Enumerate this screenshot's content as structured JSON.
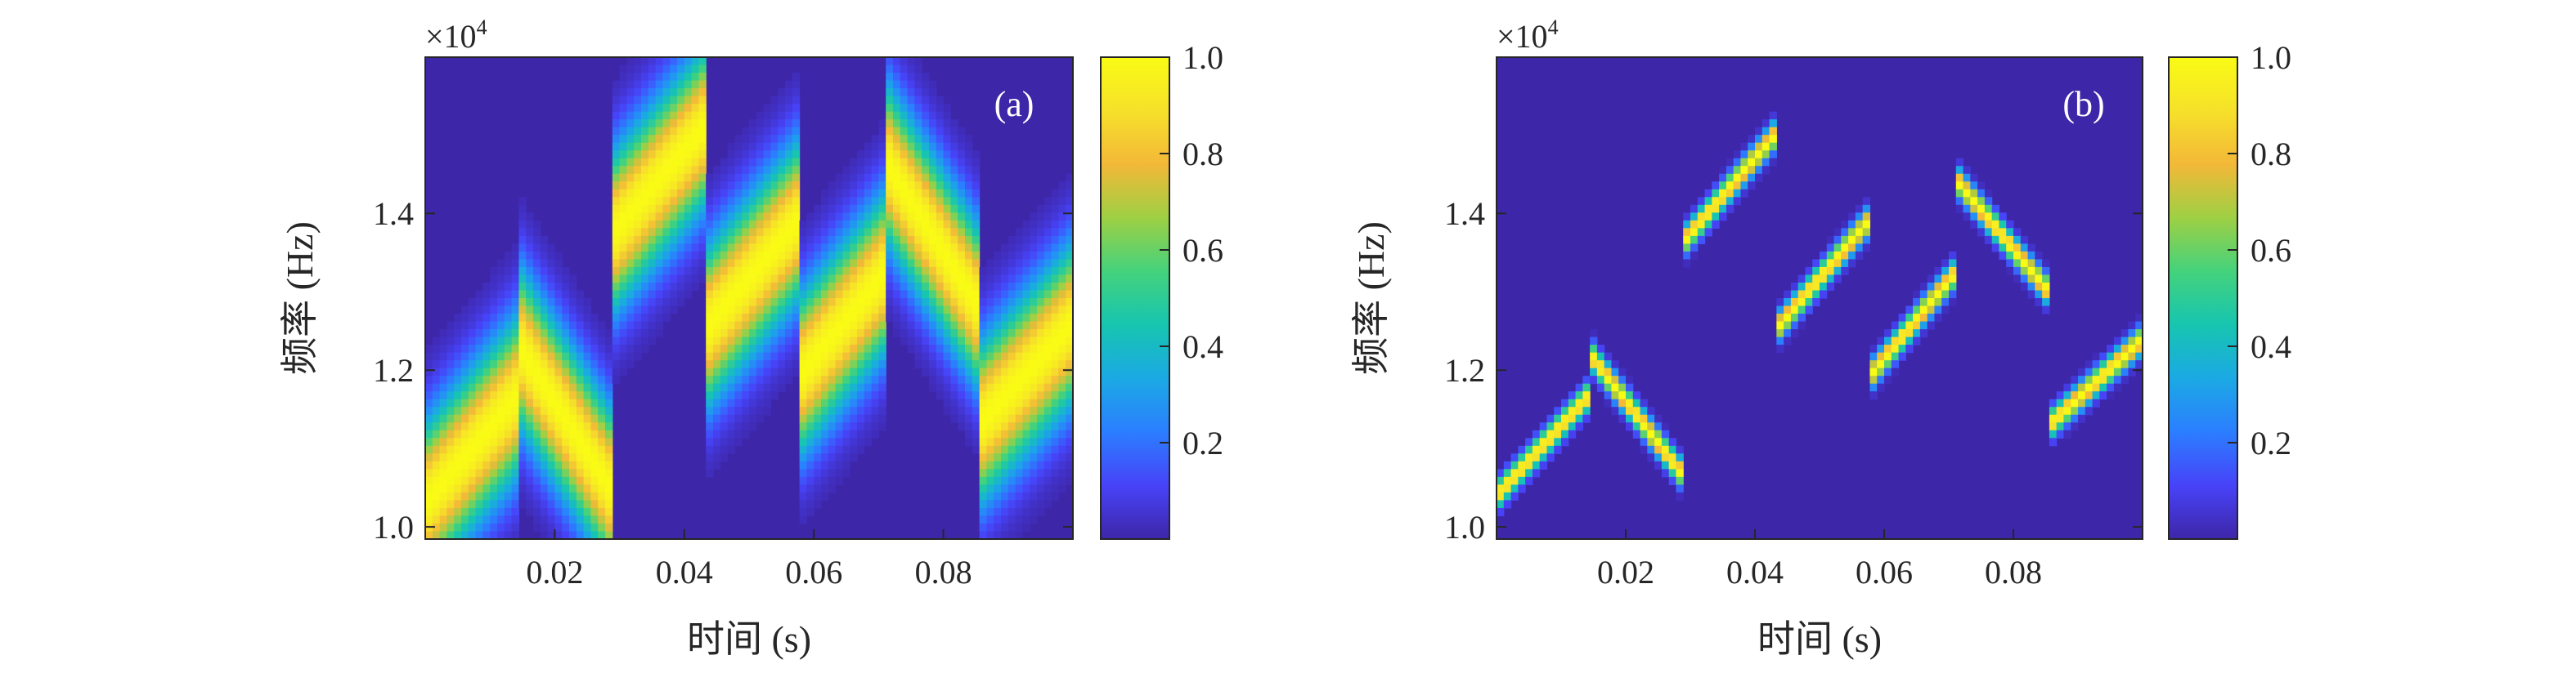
{
  "chart_data": [
    {
      "type": "heatmap",
      "panel_label": "(a)",
      "xlabel": "时间 (s)",
      "ylabel": "频率 (Hz)",
      "y_multiplier": "×10",
      "y_exponent": "4",
      "xlim": [
        0.0,
        0.1
      ],
      "ylim": [
        0.985,
        1.6
      ],
      "x_ticks": [
        0.02,
        0.04,
        0.06,
        0.08
      ],
      "x_tick_labels": [
        "0.02",
        "0.04",
        "0.06",
        "0.08"
      ],
      "y_ticks": [
        1.0,
        1.2,
        1.4
      ],
      "y_tick_labels": [
        "1.0",
        "1.2",
        "1.4"
      ],
      "colorbar": {
        "range": [
          0.0,
          1.0
        ],
        "ticks": [
          0.2,
          0.4,
          0.6,
          0.8,
          1.0
        ],
        "tick_labels": [
          "0.2",
          "0.4",
          "0.6",
          "0.8",
          "1.0"
        ]
      },
      "ridge_width": 0.07,
      "ridges": [
        {
          "t_start": 0.0,
          "t_end": 0.0145,
          "f_start": 1.03,
          "f_end": 1.17
        },
        {
          "t_start": 0.0145,
          "t_end": 0.0285,
          "f_start": 1.23,
          "f_end": 1.05
        },
        {
          "t_start": 0.0285,
          "t_end": 0.043,
          "f_start": 1.37,
          "f_end": 1.51
        },
        {
          "t_start": 0.043,
          "t_end": 0.0575,
          "f_start": 1.25,
          "f_end": 1.39
        },
        {
          "t_start": 0.0575,
          "t_end": 0.0715,
          "f_start": 1.19,
          "f_end": 1.33
        },
        {
          "t_start": 0.0715,
          "t_end": 0.0855,
          "f_start": 1.46,
          "f_end": 1.28
        },
        {
          "t_start": 0.0855,
          "t_end": 0.1,
          "f_start": 1.13,
          "f_end": 1.26
        }
      ]
    },
    {
      "type": "heatmap",
      "panel_label": "(b)",
      "xlabel": "时间 (s)",
      "ylabel": "频率 (Hz)",
      "y_multiplier": "×10",
      "y_exponent": "4",
      "xlim": [
        0.0,
        0.1
      ],
      "ylim": [
        0.985,
        1.6
      ],
      "x_ticks": [
        0.02,
        0.04,
        0.06,
        0.08
      ],
      "x_tick_labels": [
        "0.02",
        "0.04",
        "0.06",
        "0.08"
      ],
      "y_ticks": [
        1.0,
        1.2,
        1.4
      ],
      "y_tick_labels": [
        "1.0",
        "1.2",
        "1.4"
      ],
      "colorbar": {
        "range": [
          0.0,
          1.0
        ],
        "ticks": [
          0.2,
          0.4,
          0.6,
          0.8,
          1.0
        ],
        "tick_labels": [
          "0.2",
          "0.4",
          "0.6",
          "0.8",
          "1.0"
        ]
      },
      "ridge_width": 0.012,
      "ridges": [
        {
          "t_start": 0.0,
          "t_end": 0.0145,
          "f_start": 1.04,
          "f_end": 1.17
        },
        {
          "t_start": 0.0145,
          "t_end": 0.0285,
          "f_start": 1.22,
          "f_end": 1.07
        },
        {
          "t_start": 0.0285,
          "t_end": 0.043,
          "f_start": 1.36,
          "f_end": 1.5
        },
        {
          "t_start": 0.043,
          "t_end": 0.0575,
          "f_start": 1.25,
          "f_end": 1.39
        },
        {
          "t_start": 0.0575,
          "t_end": 0.0715,
          "f_start": 1.19,
          "f_end": 1.33
        },
        {
          "t_start": 0.0715,
          "t_end": 0.0855,
          "f_start": 1.44,
          "f_end": 1.3
        },
        {
          "t_start": 0.0855,
          "t_end": 0.1,
          "f_start": 1.13,
          "f_end": 1.24
        }
      ]
    }
  ],
  "colors": {
    "colormap": [
      "#3e26a8",
      "#4743f8",
      "#2b7eff",
      "#1ba9e4",
      "#17c5b0",
      "#44d27c",
      "#9ed044",
      "#f3b838",
      "#f6e12a",
      "#f9fb15"
    ]
  }
}
